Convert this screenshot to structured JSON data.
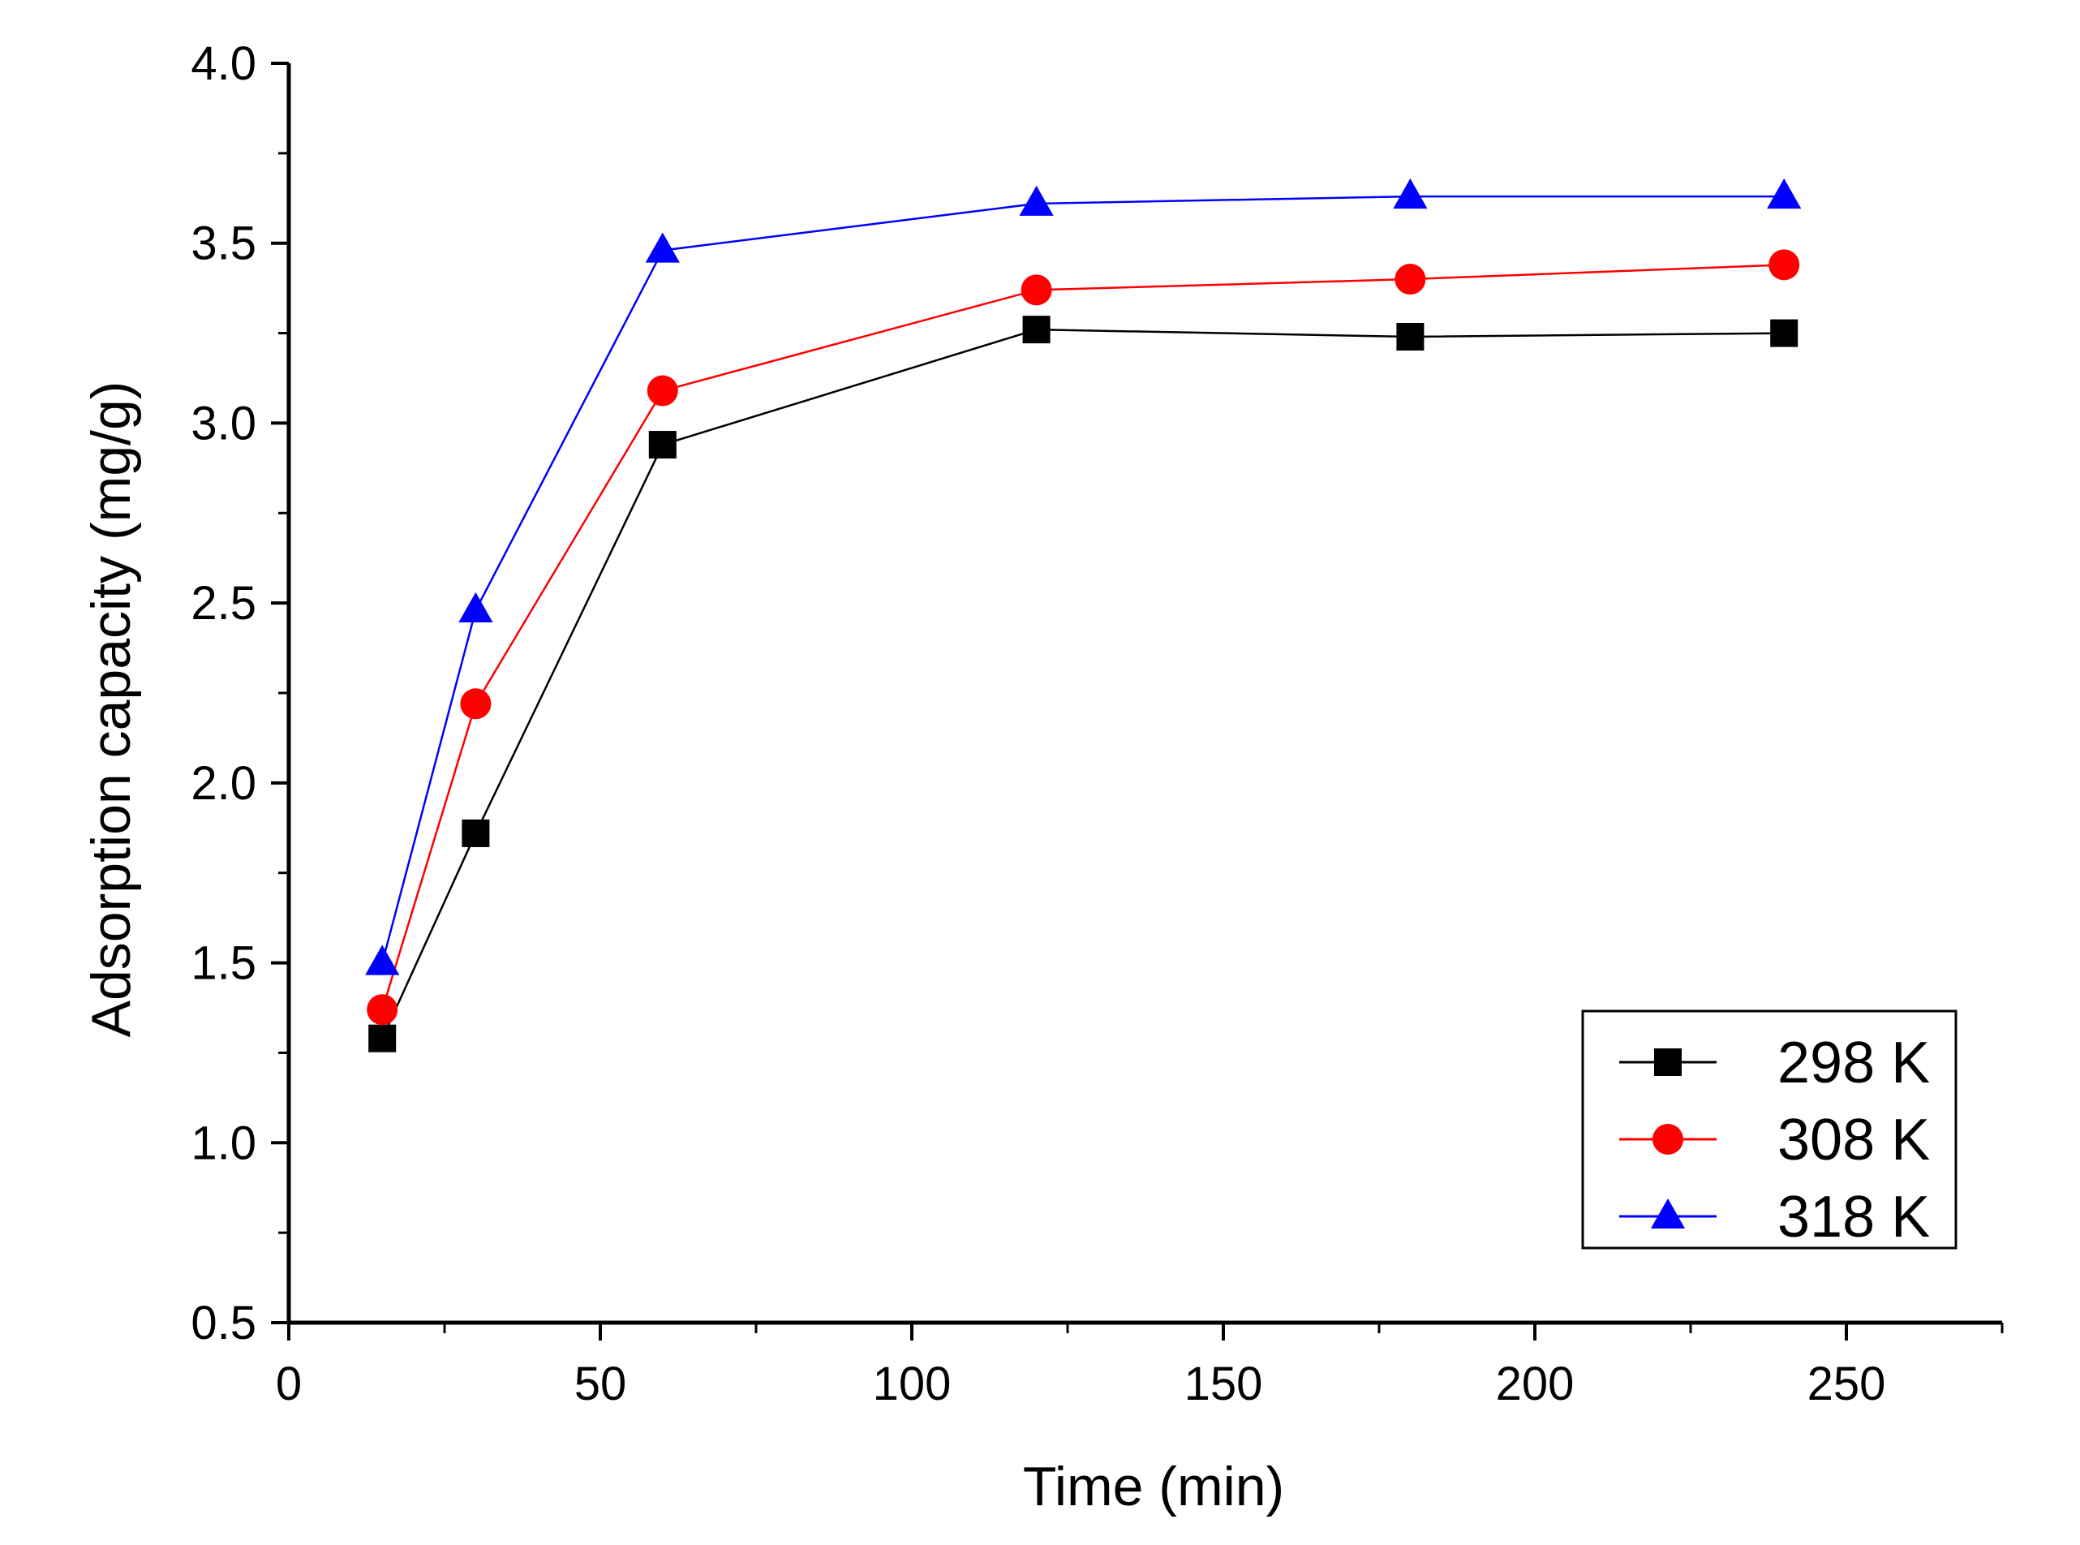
{
  "chart_data": {
    "type": "line",
    "title": "",
    "xlabel": "Time (min)",
    "ylabel": "Adsorption capacity (mg/g)",
    "xlim": [
      0,
      275
    ],
    "ylim": [
      0.5,
      4.0
    ],
    "x_ticks": [
      0,
      50,
      100,
      150,
      200,
      250
    ],
    "x_tick_labels": [
      "0",
      "50",
      "100",
      "150",
      "200",
      "250"
    ],
    "y_ticks": [
      0.5,
      1.0,
      1.5,
      2.0,
      2.5,
      3.0,
      3.5,
      4.0
    ],
    "y_tick_labels": [
      "0.5",
      "1.0",
      "1.5",
      "2.0",
      "2.5",
      "3.0",
      "3.5",
      "4.0"
    ],
    "x": [
      15,
      30,
      60,
      120,
      180,
      240
    ],
    "grid": false,
    "legend_position": "bottom-right",
    "series": [
      {
        "name": "298 K",
        "marker": "square",
        "color": "#000000",
        "values": [
          1.29,
          1.86,
          2.94,
          3.26,
          3.24,
          3.25
        ]
      },
      {
        "name": "308 K",
        "marker": "circle",
        "color": "#ff0000",
        "values": [
          1.37,
          2.22,
          3.09,
          3.37,
          3.4,
          3.44
        ]
      },
      {
        "name": "318 K",
        "marker": "triangle",
        "color": "#0000ff",
        "values": [
          1.5,
          2.48,
          3.48,
          3.61,
          3.63,
          3.63
        ]
      }
    ]
  }
}
